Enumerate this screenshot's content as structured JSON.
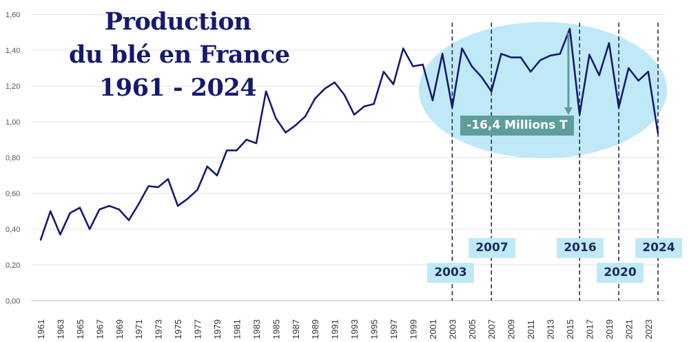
{
  "chart_data": {
    "type": "line",
    "title": [
      "Production",
      "du blé en France",
      "1961 - 2024"
    ],
    "xlabel": "",
    "ylabel": "",
    "ylim": [
      0,
      1.6
    ],
    "yticks": [
      "0,00",
      "0,20",
      "0,40",
      "0,60",
      "0,80",
      "1,00",
      "1,20",
      "1,40",
      "1,60"
    ],
    "grid": true,
    "line_color": "#141a6e",
    "x": [
      1961,
      1962,
      1963,
      1964,
      1965,
      1966,
      1967,
      1968,
      1969,
      1970,
      1971,
      1972,
      1973,
      1974,
      1975,
      1976,
      1977,
      1978,
      1979,
      1980,
      1981,
      1982,
      1983,
      1984,
      1985,
      1986,
      1987,
      1988,
      1989,
      1990,
      1991,
      1992,
      1993,
      1994,
      1995,
      1996,
      1997,
      1998,
      1999,
      2000,
      2001,
      2002,
      2003,
      2004,
      2005,
      2006,
      2007,
      2008,
      2009,
      2010,
      2011,
      2012,
      2013,
      2014,
      2015,
      2016,
      2017,
      2018,
      2019,
      2020,
      2021,
      2022,
      2023,
      2024
    ],
    "values": [
      0.34,
      0.5,
      0.37,
      0.49,
      0.52,
      0.4,
      0.51,
      0.53,
      0.51,
      0.45,
      0.54,
      0.64,
      0.635,
      0.68,
      0.53,
      0.57,
      0.62,
      0.75,
      0.7,
      0.84,
      0.84,
      0.9,
      0.88,
      1.17,
      1.02,
      0.94,
      0.98,
      1.03,
      1.13,
      1.185,
      1.22,
      1.15,
      1.04,
      1.085,
      1.1,
      1.28,
      1.21,
      1.41,
      1.31,
      1.32,
      1.12,
      1.38,
      1.08,
      1.41,
      1.31,
      1.25,
      1.17,
      1.38,
      1.36,
      1.36,
      1.28,
      1.345,
      1.37,
      1.38,
      1.52,
      1.04,
      1.375,
      1.26,
      1.44,
      1.08,
      1.3,
      1.23,
      1.28,
      0.935
    ],
    "highlight_years": [
      "2003",
      "2007",
      "2016",
      "2020",
      "2024"
    ],
    "highlight_color": "#bfe9f7",
    "annotation": {
      "text": "-16,4 Millions T",
      "from_year": 2015,
      "color": "#5f9c9c"
    }
  }
}
